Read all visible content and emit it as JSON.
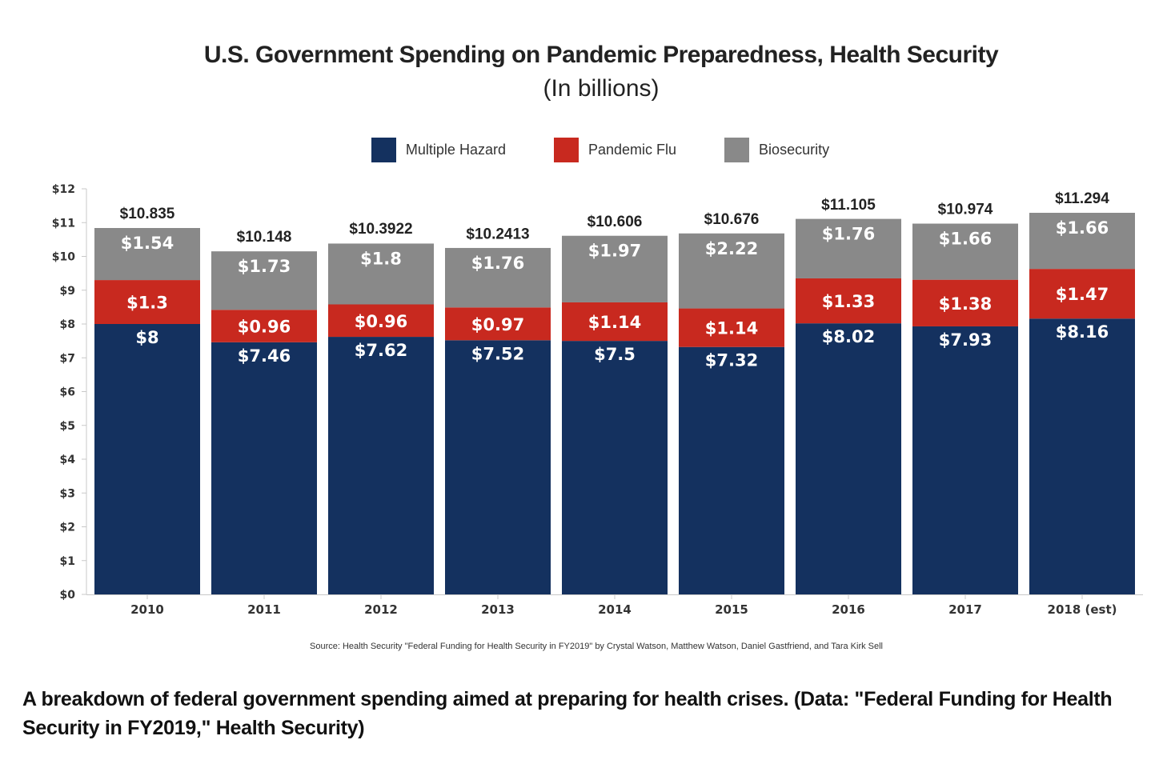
{
  "chart_data": {
    "type": "bar",
    "stacked": true,
    "title": "U.S. Government Spending on Pandemic Preparedness, Health Security",
    "subtitle": "(In billions)",
    "xlabel": "",
    "ylabel": "",
    "ylim": [
      0,
      12
    ],
    "yticks": [
      0,
      1,
      2,
      3,
      4,
      5,
      6,
      7,
      8,
      9,
      10,
      11,
      12
    ],
    "ytick_labels": [
      "$0",
      "$1",
      "$2",
      "$3",
      "$4",
      "$5",
      "$6",
      "$7",
      "$8",
      "$9",
      "$10",
      "$11",
      "$12"
    ],
    "grid": false,
    "legend_position": "top-center",
    "categories": [
      "2010",
      "2011",
      "2012",
      "2013",
      "2014",
      "2015",
      "2016",
      "2017",
      "2018 (est)"
    ],
    "series": [
      {
        "name": "Multiple Hazard",
        "color": "#14315f",
        "values": [
          8,
          7.46,
          7.62,
          7.52,
          7.5,
          7.32,
          8.02,
          7.93,
          8.16
        ],
        "labels": [
          "$8",
          "$7.46",
          "$7.62",
          "$7.52",
          "$7.5",
          "$7.32",
          "$8.02",
          "$7.93",
          "$8.16"
        ]
      },
      {
        "name": "Pandemic Flu",
        "color": "#c8291f",
        "values": [
          1.3,
          0.96,
          0.96,
          0.97,
          1.14,
          1.14,
          1.33,
          1.38,
          1.47
        ],
        "labels": [
          "$1.3",
          "$0.96",
          "$0.96",
          "$0.97",
          "$1.14",
          "$1.14",
          "$1.33",
          "$1.38",
          "$1.47"
        ]
      },
      {
        "name": "Biosecurity",
        "color": "#898989",
        "values": [
          1.54,
          1.73,
          1.8,
          1.76,
          1.97,
          2.22,
          1.76,
          1.66,
          1.66
        ],
        "labels": [
          "$1.54",
          "$1.73",
          "$1.8",
          "$1.76",
          "$1.97",
          "$2.22",
          "$1.76",
          "$1.66",
          "$1.66"
        ]
      }
    ],
    "totals": [
      10.835,
      10.148,
      10.3922,
      10.2413,
      10.606,
      10.676,
      11.105,
      10.974,
      11.294
    ],
    "total_labels": [
      "$10.835",
      "$10.148",
      "$10.3922",
      "$10.2413",
      "$10.606",
      "$10.676",
      "$11.105",
      "$10.974",
      "$11.294"
    ]
  },
  "legend": [
    {
      "label": "Multiple Hazard",
      "color": "#14315f"
    },
    {
      "label": "Pandemic Flu",
      "color": "#c8291f"
    },
    {
      "label": "Biosecurity",
      "color": "#898989"
    }
  ],
  "source": "Source:   Health Security \"Federal Funding for Health Security in FY2019\" by Crystal Watson, Matthew Watson, Daniel Gastfriend, and Tara Kirk Sell",
  "caption": "A breakdown of federal government spending aimed at preparing for health crises. (Data: \"Federal Funding for Health Security in FY2019,\" Health Security)"
}
